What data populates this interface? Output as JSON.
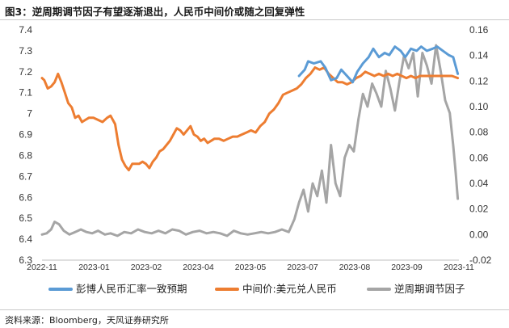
{
  "header": {
    "title": "图3：逆周期调节因子有望逐渐退出，人民币中间价或随之回复弹性"
  },
  "footer": {
    "source": "资料来源：Bloomberg，天风证券研究所"
  },
  "chart_data": {
    "type": "line",
    "title": "图3：逆周期调节因子有望逐渐退出，人民币中间价或随之回复弹性",
    "xlabel": "",
    "ylabel_left": "",
    "ylabel_right": "",
    "x_ticks": [
      "2022-11",
      "2023-01",
      "2023-02",
      "2023-04",
      "2023-05",
      "2023-07",
      "2023-08",
      "2023-09",
      "2023-11"
    ],
    "y_left": {
      "min": 6.3,
      "max": 7.4,
      "ticks": [
        "7.4",
        "7.3",
        "7.2",
        "7.1",
        "7",
        "6.9",
        "6.8",
        "6.7",
        "6.6",
        "6.5",
        "6.4",
        "6.3"
      ]
    },
    "y_right": {
      "min": -0.02,
      "max": 0.16,
      "ticks": [
        "0.16",
        "0.14",
        "0.12",
        "0.10",
        "0.08",
        "0.06",
        "0.04",
        "0.02",
        "0.00",
        "-0.02"
      ]
    },
    "grid": false,
    "legend_position": "bottom",
    "x_start": "2022-11-01",
    "x_end": "2023-11-01",
    "series": [
      {
        "name": "彭博人民币汇率一致预期",
        "axis": "left",
        "color": "#5b9bd5",
        "points": [
          [
            "2023-06-14",
            7.18
          ],
          [
            "2023-06-19",
            7.21
          ],
          [
            "2023-06-22",
            7.25
          ],
          [
            "2023-06-27",
            7.24
          ],
          [
            "2023-07-03",
            7.25
          ],
          [
            "2023-07-07",
            7.22
          ],
          [
            "2023-07-12",
            7.16
          ],
          [
            "2023-07-17",
            7.17
          ],
          [
            "2023-07-21",
            7.21
          ],
          [
            "2023-07-26",
            7.18
          ],
          [
            "2023-07-31",
            7.15
          ],
          [
            "2023-08-04",
            7.2
          ],
          [
            "2023-08-09",
            7.24
          ],
          [
            "2023-08-14",
            7.27
          ],
          [
            "2023-08-18",
            7.31
          ],
          [
            "2023-08-23",
            7.27
          ],
          [
            "2023-08-28",
            7.29
          ],
          [
            "2023-09-01",
            7.28
          ],
          [
            "2023-09-06",
            7.32
          ],
          [
            "2023-09-11",
            7.3
          ],
          [
            "2023-09-15",
            7.27
          ],
          [
            "2023-09-20",
            7.31
          ],
          [
            "2023-09-25",
            7.3
          ],
          [
            "2023-09-29",
            7.32
          ],
          [
            "2023-10-04",
            7.3
          ],
          [
            "2023-10-09",
            7.31
          ],
          [
            "2023-10-13",
            7.32
          ],
          [
            "2023-10-18",
            7.3
          ],
          [
            "2023-10-23",
            7.28
          ],
          [
            "2023-10-27",
            7.27
          ],
          [
            "2023-10-31",
            7.19
          ]
        ]
      },
      {
        "name": "中间价:美元兑人民币",
        "axis": "left",
        "color": "#ed7d31",
        "points": [
          [
            "2022-11-01",
            7.17
          ],
          [
            "2022-11-03",
            7.16
          ],
          [
            "2022-11-06",
            7.12
          ],
          [
            "2022-11-09",
            7.13
          ],
          [
            "2022-11-12",
            7.15
          ],
          [
            "2022-11-15",
            7.19
          ],
          [
            "2022-11-18",
            7.15
          ],
          [
            "2022-11-21",
            7.1
          ],
          [
            "2022-11-24",
            7.05
          ],
          [
            "2022-11-27",
            7.03
          ],
          [
            "2022-11-30",
            6.98
          ],
          [
            "2022-12-03",
            6.99
          ],
          [
            "2022-12-06",
            6.96
          ],
          [
            "2022-12-09",
            6.97
          ],
          [
            "2022-12-12",
            6.98
          ],
          [
            "2022-12-16",
            6.98
          ],
          [
            "2022-12-20",
            6.97
          ],
          [
            "2022-12-24",
            6.96
          ],
          [
            "2022-12-28",
            6.98
          ],
          [
            "2022-12-31",
            6.99
          ],
          [
            "2023-01-04",
            6.95
          ],
          [
            "2023-01-07",
            6.85
          ],
          [
            "2023-01-10",
            6.78
          ],
          [
            "2023-01-13",
            6.75
          ],
          [
            "2023-01-16",
            6.73
          ],
          [
            "2023-01-19",
            6.76
          ],
          [
            "2023-01-22",
            6.76
          ],
          [
            "2023-01-25",
            6.76
          ],
          [
            "2023-01-28",
            6.77
          ],
          [
            "2023-01-31",
            6.76
          ],
          [
            "2023-02-03",
            6.74
          ],
          [
            "2023-02-06",
            6.77
          ],
          [
            "2023-02-09",
            6.79
          ],
          [
            "2023-02-12",
            6.82
          ],
          [
            "2023-02-15",
            6.83
          ],
          [
            "2023-02-18",
            6.85
          ],
          [
            "2023-02-21",
            6.87
          ],
          [
            "2023-02-24",
            6.9
          ],
          [
            "2023-02-27",
            6.93
          ],
          [
            "2023-03-02",
            6.92
          ],
          [
            "2023-03-05",
            6.9
          ],
          [
            "2023-03-08",
            6.92
          ],
          [
            "2023-03-11",
            6.94
          ],
          [
            "2023-03-14",
            6.9
          ],
          [
            "2023-03-17",
            6.89
          ],
          [
            "2023-03-20",
            6.87
          ],
          [
            "2023-03-23",
            6.88
          ],
          [
            "2023-03-26",
            6.86
          ],
          [
            "2023-03-29",
            6.87
          ],
          [
            "2023-04-01",
            6.88
          ],
          [
            "2023-04-05",
            6.88
          ],
          [
            "2023-04-09",
            6.87
          ],
          [
            "2023-04-13",
            6.88
          ],
          [
            "2023-04-17",
            6.89
          ],
          [
            "2023-04-21",
            6.89
          ],
          [
            "2023-04-25",
            6.9
          ],
          [
            "2023-04-29",
            6.91
          ],
          [
            "2023-05-03",
            6.92
          ],
          [
            "2023-05-07",
            6.91
          ],
          [
            "2023-05-11",
            6.94
          ],
          [
            "2023-05-15",
            6.96
          ],
          [
            "2023-05-19",
            7.0
          ],
          [
            "2023-05-23",
            7.02
          ],
          [
            "2023-05-27",
            7.05
          ],
          [
            "2023-05-31",
            7.09
          ],
          [
            "2023-06-04",
            7.1
          ],
          [
            "2023-06-08",
            7.11
          ],
          [
            "2023-06-12",
            7.12
          ],
          [
            "2023-06-16",
            7.14
          ],
          [
            "2023-06-20",
            7.17
          ],
          [
            "2023-06-24",
            7.19
          ],
          [
            "2023-06-28",
            7.22
          ],
          [
            "2023-07-02",
            7.21
          ],
          [
            "2023-07-06",
            7.22
          ],
          [
            "2023-07-10",
            7.19
          ],
          [
            "2023-07-14",
            7.17
          ],
          [
            "2023-07-18",
            7.15
          ],
          [
            "2023-07-22",
            7.15
          ],
          [
            "2023-07-26",
            7.14
          ],
          [
            "2023-07-30",
            7.15
          ],
          [
            "2023-08-03",
            7.17
          ],
          [
            "2023-08-07",
            7.18
          ],
          [
            "2023-08-11",
            7.2
          ],
          [
            "2023-08-15",
            7.19
          ],
          [
            "2023-08-19",
            7.18
          ],
          [
            "2023-08-23",
            7.19
          ],
          [
            "2023-08-27",
            7.18
          ],
          [
            "2023-08-31",
            7.19
          ],
          [
            "2023-09-04",
            7.18
          ],
          [
            "2023-09-08",
            7.19
          ],
          [
            "2023-09-12",
            7.18
          ],
          [
            "2023-09-16",
            7.17
          ],
          [
            "2023-09-20",
            7.18
          ],
          [
            "2023-09-24",
            7.17
          ],
          [
            "2023-09-28",
            7.18
          ],
          [
            "2023-10-02",
            7.18
          ],
          [
            "2023-10-06",
            7.18
          ],
          [
            "2023-10-10",
            7.18
          ],
          [
            "2023-10-14",
            7.18
          ],
          [
            "2023-10-18",
            7.18
          ],
          [
            "2023-10-22",
            7.18
          ],
          [
            "2023-10-26",
            7.18
          ],
          [
            "2023-10-31",
            7.17
          ]
        ]
      },
      {
        "name": "逆周期调节因子",
        "axis": "right",
        "color": "#a5a5a5",
        "points": [
          [
            "2022-11-01",
            0.0
          ],
          [
            "2022-11-05",
            0.001
          ],
          [
            "2022-11-09",
            0.004
          ],
          [
            "2022-11-12",
            0.01
          ],
          [
            "2022-11-16",
            0.008
          ],
          [
            "2022-11-20",
            0.003
          ],
          [
            "2022-11-25",
            0.0
          ],
          [
            "2022-11-30",
            0.002
          ],
          [
            "2022-12-05",
            0.004
          ],
          [
            "2022-12-10",
            0.002
          ],
          [
            "2022-12-15",
            0.001
          ],
          [
            "2022-12-20",
            0.003
          ],
          [
            "2022-12-26",
            0.0
          ],
          [
            "2022-12-31",
            0.001
          ],
          [
            "2023-01-06",
            -0.001
          ],
          [
            "2023-01-12",
            0.002
          ],
          [
            "2023-01-18",
            0.001
          ],
          [
            "2023-01-24",
            0.004
          ],
          [
            "2023-01-30",
            0.002
          ],
          [
            "2023-02-05",
            0.001
          ],
          [
            "2023-02-11",
            0.003
          ],
          [
            "2023-02-17",
            0.001
          ],
          [
            "2023-02-23",
            0.004
          ],
          [
            "2023-03-01",
            0.003
          ],
          [
            "2023-03-07",
            0.0
          ],
          [
            "2023-03-13",
            0.002
          ],
          [
            "2023-03-19",
            0.003
          ],
          [
            "2023-03-25",
            0.001
          ],
          [
            "2023-03-31",
            0.002
          ],
          [
            "2023-04-06",
            0.001
          ],
          [
            "2023-04-12",
            -0.001
          ],
          [
            "2023-04-18",
            0.003
          ],
          [
            "2023-04-24",
            0.001
          ],
          [
            "2023-04-30",
            0.0
          ],
          [
            "2023-05-06",
            0.001
          ],
          [
            "2023-05-12",
            0.002
          ],
          [
            "2023-05-18",
            0.001
          ],
          [
            "2023-05-24",
            0.002
          ],
          [
            "2023-05-30",
            0.004
          ],
          [
            "2023-06-05",
            0.002
          ],
          [
            "2023-06-10",
            0.012
          ],
          [
            "2023-06-14",
            0.025
          ],
          [
            "2023-06-18",
            0.035
          ],
          [
            "2023-06-22",
            0.018
          ],
          [
            "2023-06-26",
            0.04
          ],
          [
            "2023-06-30",
            0.03
          ],
          [
            "2023-07-04",
            0.05
          ],
          [
            "2023-07-08",
            0.025
          ],
          [
            "2023-07-12",
            0.07
          ],
          [
            "2023-07-16",
            0.04
          ],
          [
            "2023-07-20",
            0.03
          ],
          [
            "2023-07-24",
            0.06
          ],
          [
            "2023-07-28",
            0.07
          ],
          [
            "2023-08-01",
            0.065
          ],
          [
            "2023-08-05",
            0.09
          ],
          [
            "2023-08-09",
            0.11
          ],
          [
            "2023-08-13",
            0.1
          ],
          [
            "2023-08-17",
            0.118
          ],
          [
            "2023-08-21",
            0.11
          ],
          [
            "2023-08-25",
            0.1
          ],
          [
            "2023-08-29",
            0.128
          ],
          [
            "2023-09-02",
            0.114
          ],
          [
            "2023-09-06",
            0.097
          ],
          [
            "2023-09-10",
            0.12
          ],
          [
            "2023-09-14",
            0.14
          ],
          [
            "2023-09-18",
            0.13
          ],
          [
            "2023-09-22",
            0.142
          ],
          [
            "2023-09-26",
            0.108
          ],
          [
            "2023-09-30",
            0.142
          ],
          [
            "2023-10-04",
            0.132
          ],
          [
            "2023-10-08",
            0.118
          ],
          [
            "2023-10-12",
            0.148
          ],
          [
            "2023-10-16",
            0.128
          ],
          [
            "2023-10-20",
            0.105
          ],
          [
            "2023-10-24",
            0.095
          ],
          [
            "2023-10-27",
            0.07
          ],
          [
            "2023-10-29",
            0.05
          ],
          [
            "2023-10-31",
            0.028
          ]
        ]
      }
    ]
  }
}
